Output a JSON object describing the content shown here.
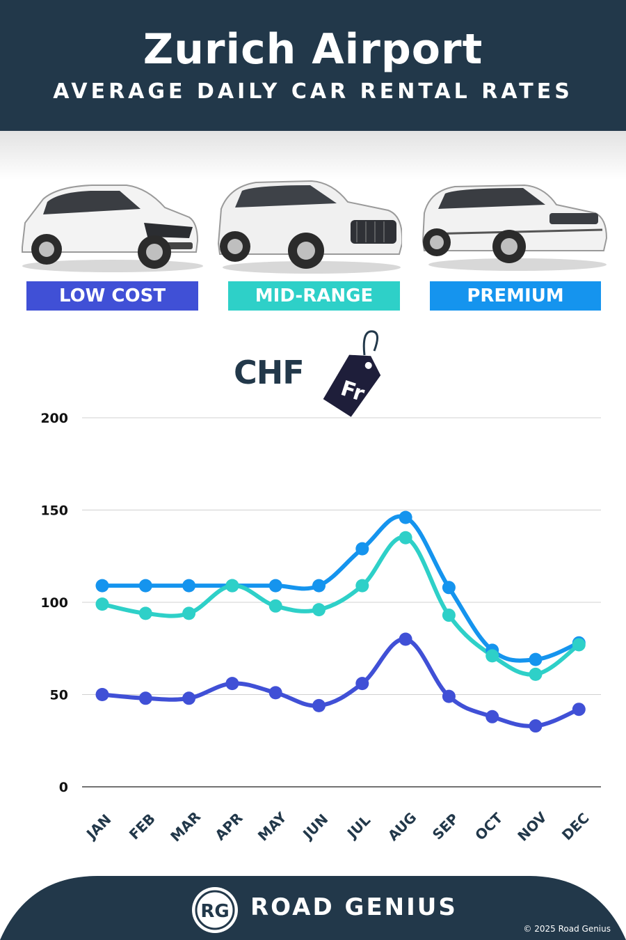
{
  "header": {
    "title": "Zurich Airport",
    "subtitle": "AVERAGE DAILY CAR RENTAL RATES"
  },
  "tiers": [
    {
      "label": "LOW COST",
      "color": "#4050d6",
      "car_icon": "hatchback-car-image"
    },
    {
      "label": "MID-RANGE",
      "color": "#2ed0c8",
      "car_icon": "suv-car-image"
    },
    {
      "label": "PREMIUM",
      "color": "#1594ee",
      "car_icon": "luxury-suv-car-image"
    }
  ],
  "currency": {
    "code": "CHF",
    "tag_text": "Fr"
  },
  "chart_data": {
    "type": "line",
    "categories": [
      "JAN",
      "FEB",
      "MAR",
      "APR",
      "MAY",
      "JUN",
      "JUL",
      "AUG",
      "SEP",
      "OCT",
      "NOV",
      "DEC"
    ],
    "series": [
      {
        "name": "PREMIUM",
        "color": "#1594ee",
        "values": [
          109,
          109,
          109,
          109,
          109,
          109,
          129,
          146,
          108,
          74,
          69,
          78
        ]
      },
      {
        "name": "MID-RANGE",
        "color": "#2ed0c8",
        "values": [
          99,
          94,
          94,
          109,
          98,
          96,
          109,
          135,
          93,
          71,
          61,
          77
        ]
      },
      {
        "name": "LOW COST",
        "color": "#4050d6",
        "values": [
          50,
          48,
          48,
          56,
          51,
          44,
          56,
          80,
          49,
          38,
          33,
          42
        ]
      }
    ],
    "y_ticks": [
      "0",
      "50",
      "100",
      "150",
      "200"
    ],
    "ylim": [
      0,
      200
    ],
    "grid": true,
    "legend": "top"
  },
  "footer": {
    "logo_text": "RG",
    "brand": "ROAD GENIUS",
    "copyright": "© 2025 Road Genius",
    "background": "#22384a"
  }
}
